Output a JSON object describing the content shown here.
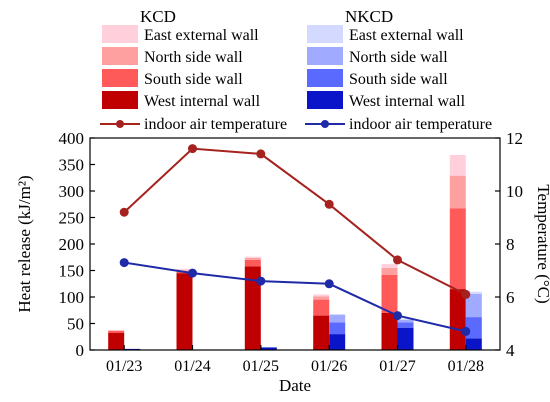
{
  "chart_data": {
    "type": "bar",
    "categories": [
      "01/23",
      "01/24",
      "01/25",
      "01/26",
      "01/27",
      "01/28"
    ],
    "xlabel": "Date",
    "ylabel_left": "Heat release (kJ/m²)",
    "ylabel_right": "Temperature (°C)",
    "ylim_left": [
      0,
      400
    ],
    "yticks_left": [
      0,
      50,
      100,
      150,
      200,
      250,
      300,
      350,
      400
    ],
    "ylim_right": [
      4,
      12
    ],
    "yticks_right": [
      4,
      6,
      8,
      10,
      12
    ],
    "groups": [
      {
        "name": "KCD",
        "stack_series": [
          {
            "name": "West internal wall",
            "color": "#c00000",
            "values": [
              32,
              145,
              158,
              65,
              70,
              115
            ]
          },
          {
            "name": "South side wall",
            "color": "#ff5a5a",
            "values": [
              4,
              3,
              12,
              30,
              72,
              152
            ]
          },
          {
            "name": "North side wall",
            "color": "#ffa0a0",
            "values": [
              1,
              2,
              4,
              6,
              13,
              62
            ]
          },
          {
            "name": "East external wall",
            "color": "#ffd0dc",
            "values": [
              1,
              3,
              2,
              4,
              7,
              39
            ]
          }
        ],
        "line": {
          "name": "indoor air temperature",
          "color": "#a5221e",
          "values": [
            9.2,
            11.6,
            11.4,
            9.5,
            7.4,
            6.1
          ]
        }
      },
      {
        "name": "NKCD",
        "stack_series": [
          {
            "name": "West internal wall",
            "color": "#0a14c8",
            "values": [
              2,
              1,
              5,
              30,
              42,
              22
            ]
          },
          {
            "name": "South side wall",
            "color": "#5a6aff",
            "values": [
              0,
              0,
              0,
              22,
              10,
              40
            ]
          },
          {
            "name": "North side wall",
            "color": "#a0aaff",
            "values": [
              0,
              0,
              0,
              14,
              5,
              44
            ]
          },
          {
            "name": "East external wall",
            "color": "#d4daff",
            "values": [
              0,
              0,
              0,
              2,
              2,
              4
            ]
          }
        ],
        "line": {
          "name": "indoor air temperature",
          "color": "#1f2aa8",
          "values": [
            7.3,
            6.9,
            6.6,
            6.5,
            5.3,
            4.7
          ]
        }
      }
    ],
    "legend_placement": "top"
  }
}
